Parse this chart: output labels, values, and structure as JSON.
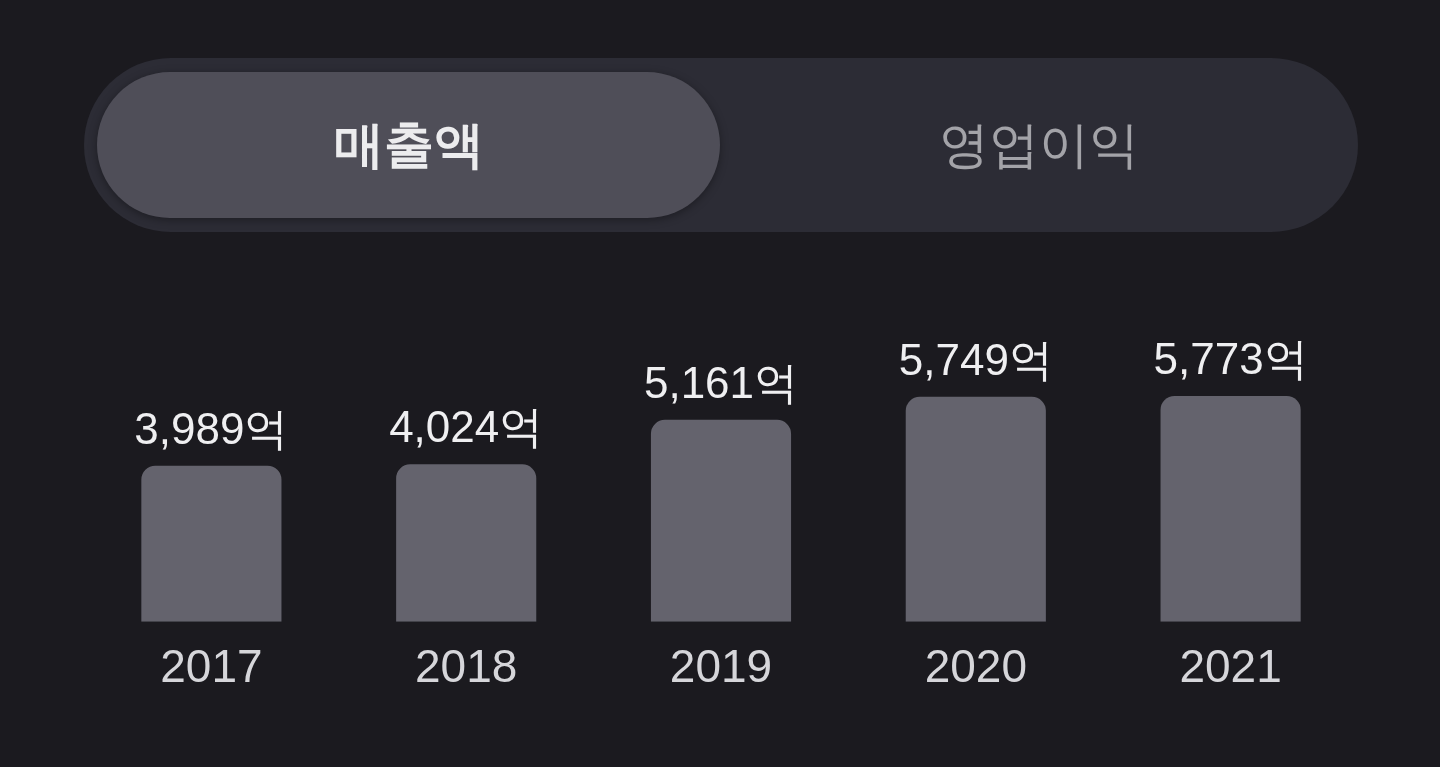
{
  "chart_data": {
    "type": "bar",
    "title": "매출액",
    "annotations": [
      "영업이익"
    ],
    "categories": [
      "2017",
      "2018",
      "2019",
      "2020",
      "2021"
    ],
    "values": [
      3989,
      4024,
      5161,
      5749,
      5773
    ],
    "value_labels": [
      "3,989억",
      "4,024억",
      "5,161억",
      "5,749억",
      "5,773억"
    ],
    "color": "#64636d"
  }
}
